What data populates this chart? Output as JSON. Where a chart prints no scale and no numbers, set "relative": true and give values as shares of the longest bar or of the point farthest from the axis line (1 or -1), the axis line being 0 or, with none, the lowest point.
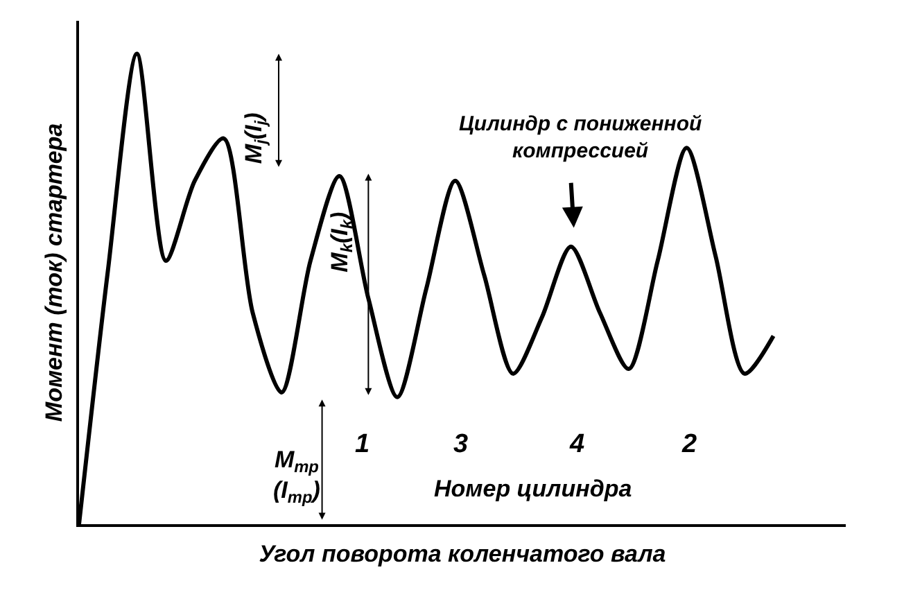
{
  "chart_data": {
    "type": "line",
    "relative": true,
    "color": "#000000",
    "categories": [
      null,
      null,
      null,
      null,
      null,
      null,
      null,
      null,
      null,
      null,
      null,
      null,
      null,
      null,
      null,
      null,
      null,
      null,
      null,
      null,
      null,
      null,
      null,
      null,
      null
    ],
    "values": [
      0,
      0.54,
      1.0,
      0.56,
      0.73,
      0.82,
      0.45,
      0.28,
      0.56,
      0.74,
      0.48,
      0.27,
      0.5,
      0.73,
      0.53,
      0.32,
      0.44,
      0.59,
      0.45,
      0.33,
      0.56,
      0.8,
      0.57,
      0.32,
      0.4
    ],
    "xlabel": "Угол поворота коленчатого вала",
    "ylabel": "Момент (ток) стартера",
    "annotations": [
      "M$_{j}$(I$_{j}$)",
      "M$_{k}$(I$_{k}$)",
      "M$_{тр}$\n(I$_{тр}$)",
      "1",
      "3",
      "4",
      "2",
      "Номер цилиндра",
      "Цилиндр с пониженной\nкомпрессией"
    ]
  }
}
